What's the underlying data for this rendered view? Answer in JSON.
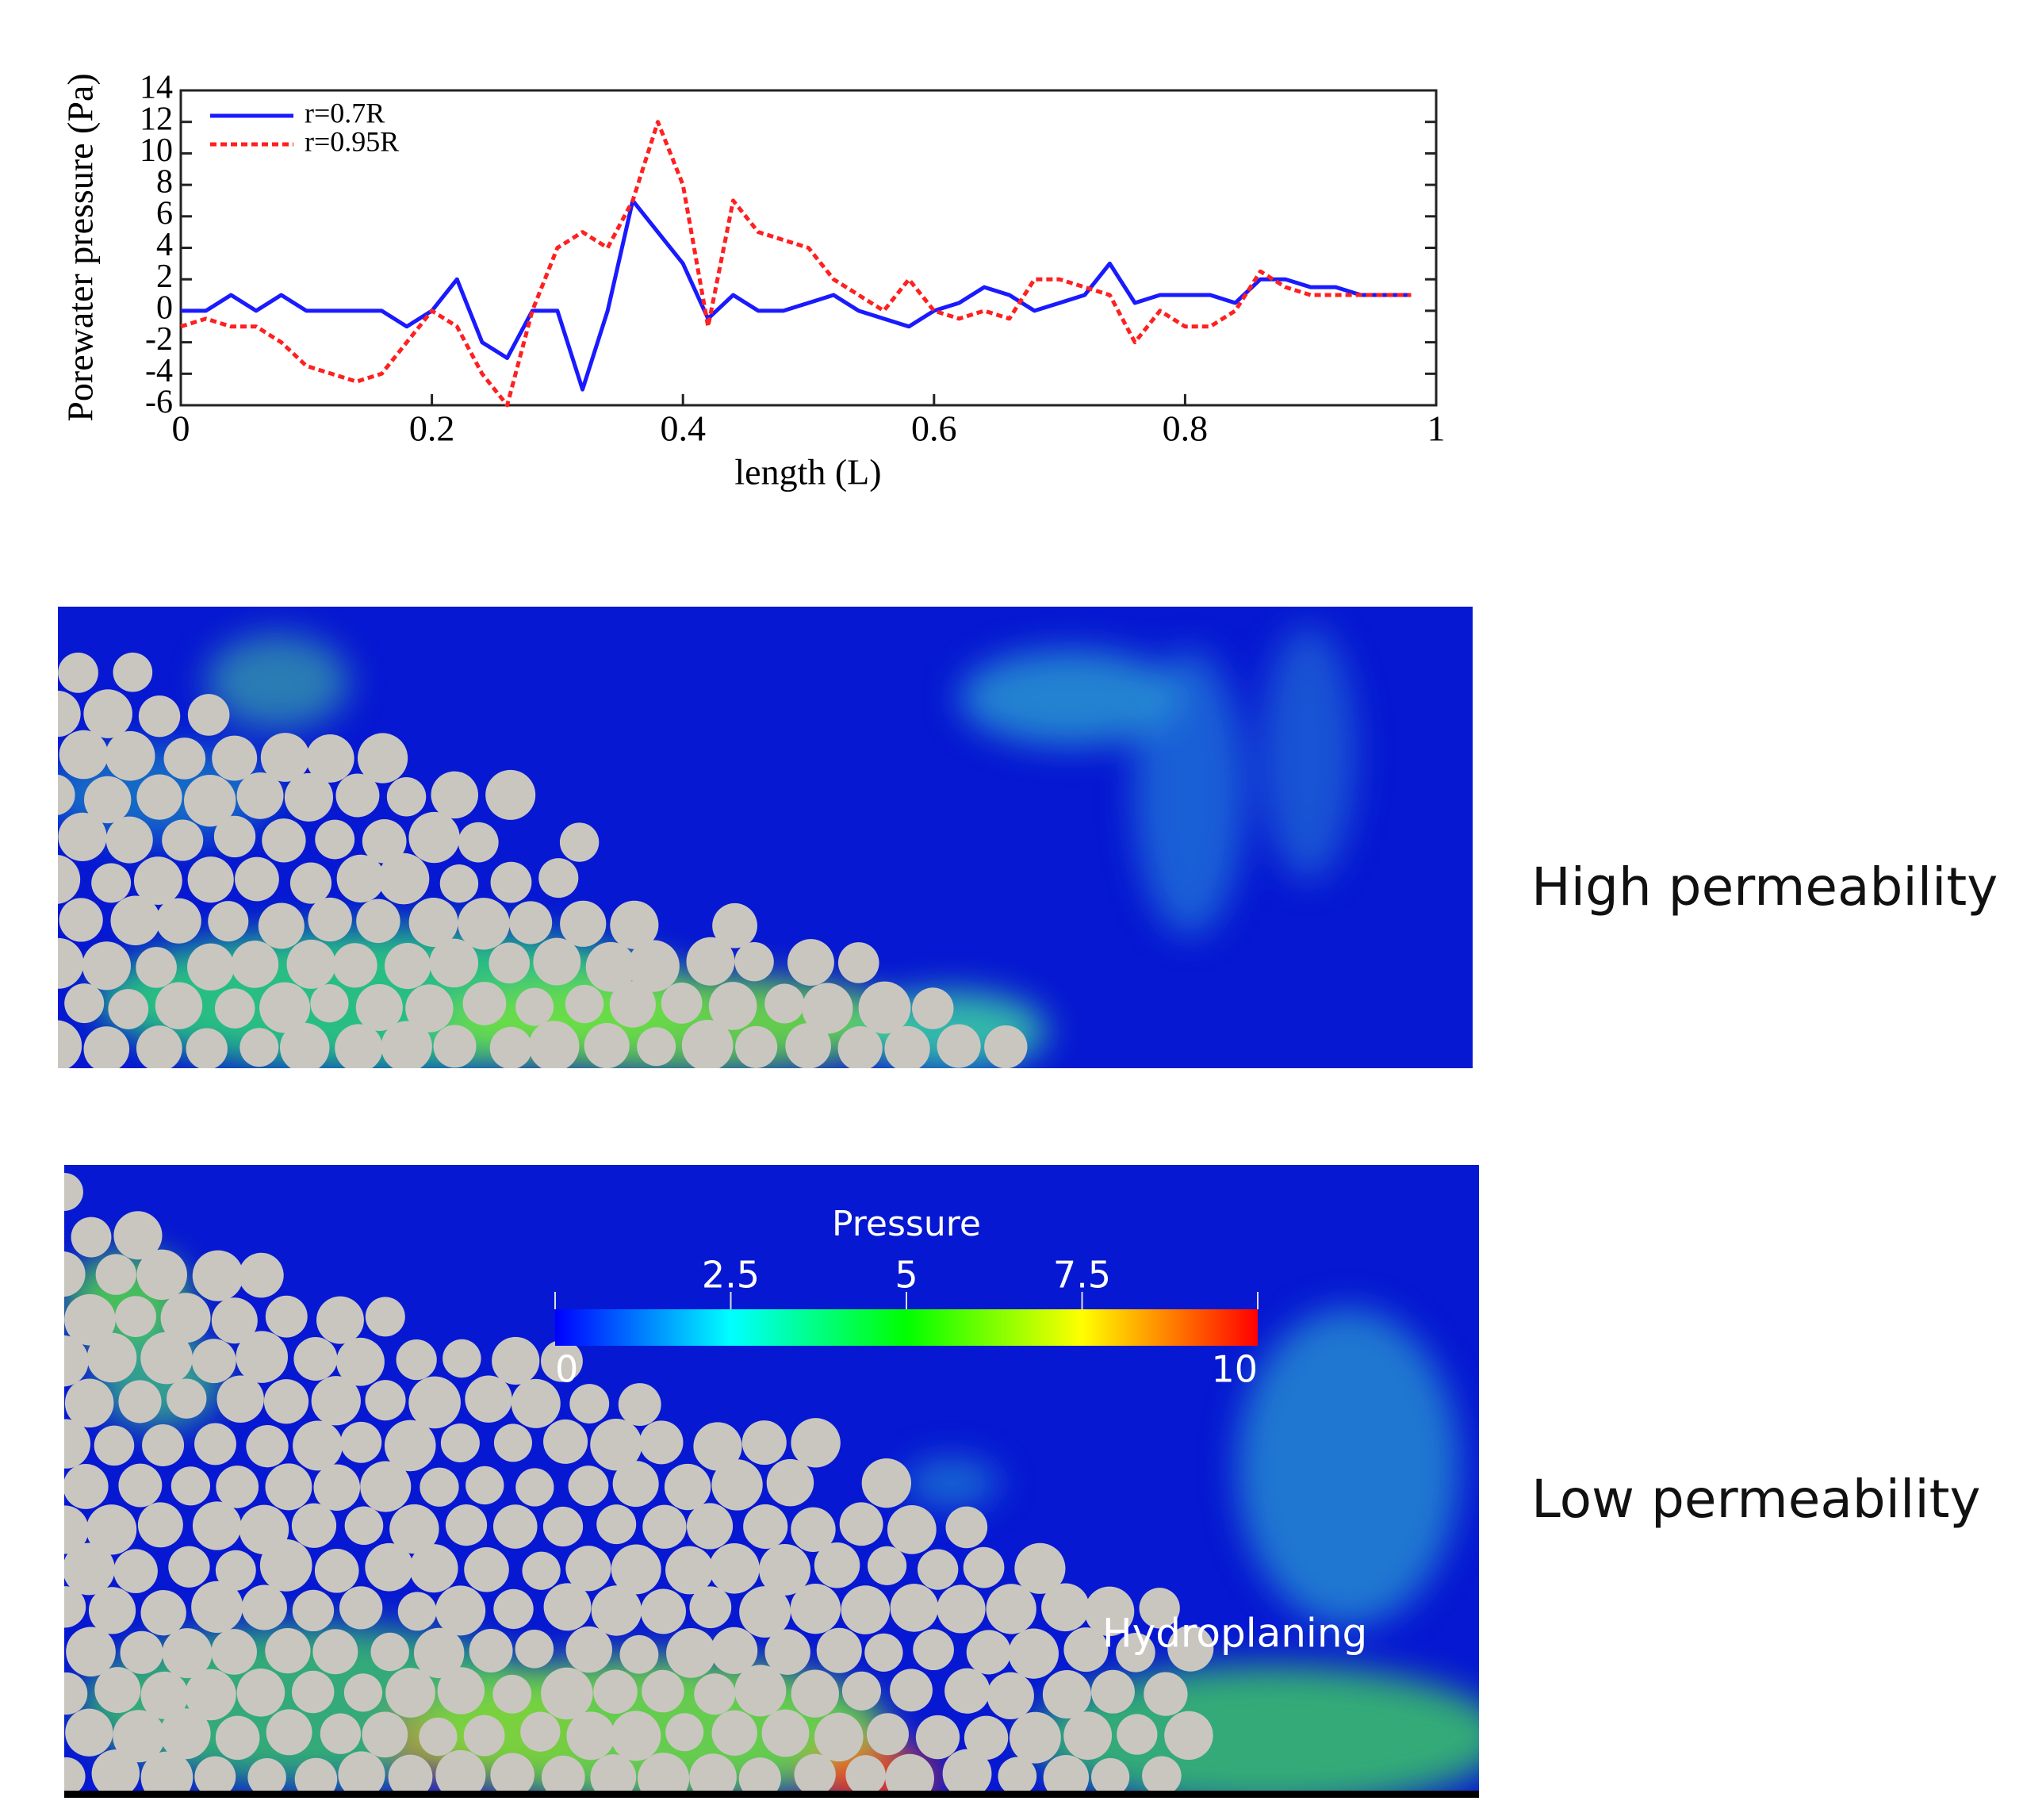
{
  "chart_data": [
    {
      "type": "line",
      "y_label": "Porewater pressure (Pa)",
      "x_label": "length (L)",
      "x": [
        0,
        0.02,
        0.04,
        0.06,
        0.08,
        0.1,
        0.12,
        0.14,
        0.16,
        0.18,
        0.2,
        0.22,
        0.24,
        0.26,
        0.28,
        0.3,
        0.32,
        0.34,
        0.36,
        0.38,
        0.4,
        0.42,
        0.44,
        0.46,
        0.48,
        0.5,
        0.52,
        0.54,
        0.56,
        0.58,
        0.6,
        0.62,
        0.64,
        0.66,
        0.68,
        0.7,
        0.72,
        0.74,
        0.76,
        0.78,
        0.8,
        0.82,
        0.84,
        0.86,
        0.88,
        0.9,
        0.92,
        0.94,
        0.96,
        0.98
      ],
      "series": [
        {
          "name": "r=0.7R",
          "color": "#1a1aff",
          "dash": false,
          "values": [
            0,
            0,
            1,
            0,
            1,
            0,
            0,
            0,
            0,
            -1,
            0,
            2,
            -2,
            -3,
            0,
            0,
            -5,
            0,
            7,
            5,
            3,
            -0.5,
            1,
            0,
            0,
            0.5,
            1,
            0,
            -0.5,
            -1,
            0,
            0.5,
            1.5,
            1,
            0,
            0.5,
            1,
            3,
            0.5,
            1,
            1,
            1,
            0.5,
            2,
            2,
            1.5,
            1.5,
            1,
            1,
            1
          ]
        },
        {
          "name": "r=0.95R",
          "color": "#ff2020",
          "dash": true,
          "values": [
            -1,
            -0.5,
            -1,
            -1,
            -2,
            -3.5,
            -4,
            -4.5,
            -4,
            -2,
            0,
            -1,
            -4,
            -6,
            0,
            4,
            5,
            4,
            7,
            12,
            8,
            -1,
            7,
            5,
            4.5,
            4,
            2,
            1,
            0,
            2,
            0,
            -0.5,
            0,
            -0.5,
            2,
            2,
            1.5,
            1,
            -2,
            0,
            -1,
            -1,
            0,
            2.5,
            1.5,
            1,
            1,
            1,
            1,
            1
          ]
        }
      ],
      "xlim": [
        0,
        1
      ],
      "xticks": [
        0,
        0.2,
        0.4,
        0.6,
        0.8,
        1
      ],
      "ylim": [
        -6,
        14
      ],
      "yticks": [
        -6,
        -4,
        -2,
        0,
        2,
        4,
        6,
        8,
        10,
        12,
        14
      ],
      "legend": "top-left"
    },
    {
      "type": "colorbar",
      "title": "Pressure",
      "xlim": [
        0,
        10
      ],
      "xticks": [
        0,
        2.5,
        5,
        7.5,
        10
      ],
      "colors": [
        "#0000ff",
        "#00ffff",
        "#00ff00",
        "#ffff00",
        "#ff0000"
      ]
    }
  ],
  "panels": [
    {
      "label": "High permeability"
    },
    {
      "label": "Low permeability",
      "annotation": "Hydroplaning"
    }
  ]
}
